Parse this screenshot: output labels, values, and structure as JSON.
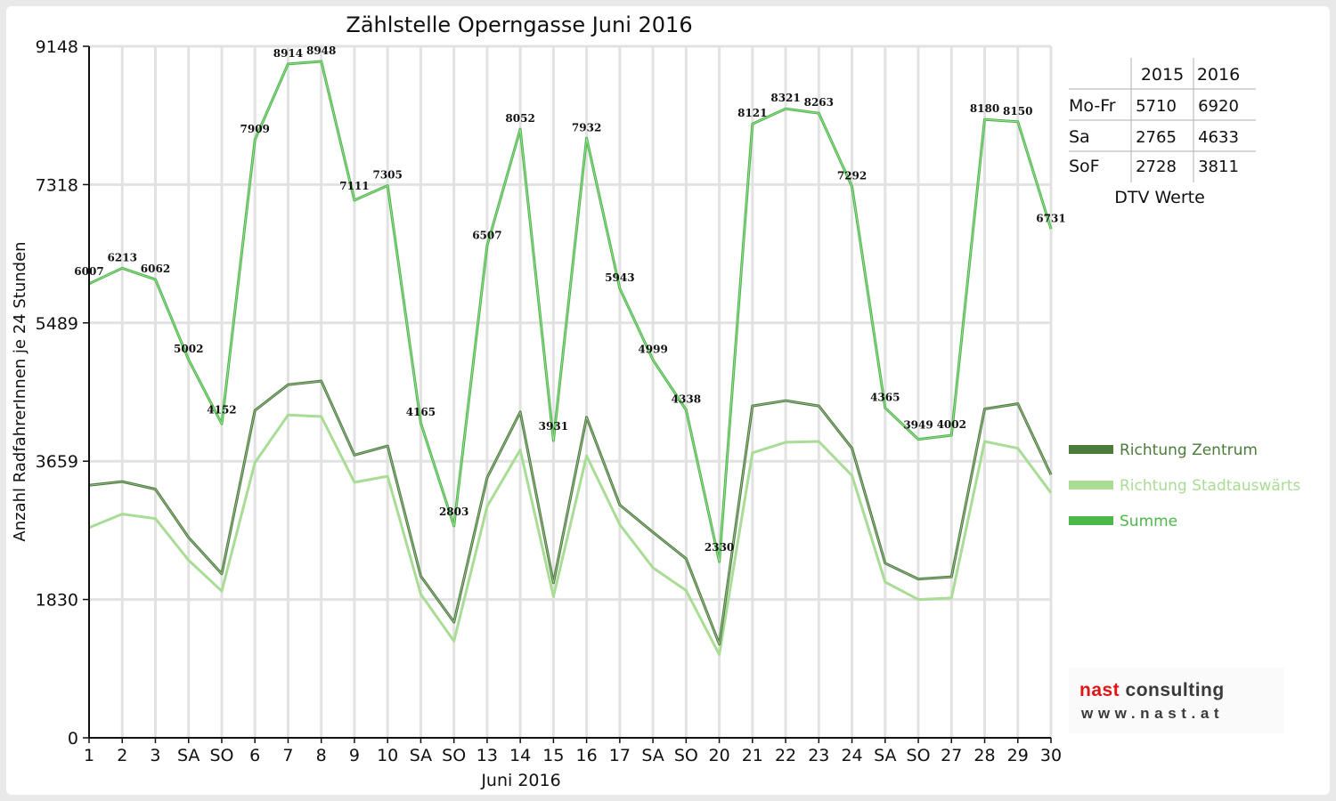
{
  "chart_data": {
    "type": "line",
    "title": "Zählstelle Operngasse Juni 2016",
    "xlabel": "Juni 2016",
    "ylabel": "Anzahl RadfahrerInnen je 24 Stunden",
    "ylim": [
      0,
      9148
    ],
    "yticks": [
      "0",
      "1830",
      "3659",
      "5489",
      "7318",
      "9148"
    ],
    "ytick_values": [
      0,
      1830,
      3659,
      5489,
      7318,
      9148
    ],
    "categories": [
      "1",
      "2",
      "3",
      "SA",
      "SO",
      "6",
      "7",
      "8",
      "9",
      "10",
      "SA",
      "SO",
      "13",
      "14",
      "15",
      "16",
      "17",
      "SA",
      "SO",
      "20",
      "21",
      "22",
      "23",
      "24",
      "SA",
      "SO",
      "27",
      "28",
      "29",
      "30"
    ],
    "weekend_labels": [
      "SA",
      "SO"
    ],
    "sunday_label_color": "#e00000",
    "grid": true,
    "legend_position": "right",
    "series": [
      {
        "name": "Richtung Zentrum",
        "color": "#4a7c3a",
        "values": [
          3340,
          3390,
          3290,
          2650,
          2170,
          4330,
          4670,
          4720,
          3740,
          3860,
          2140,
          1530,
          3440,
          4310,
          2050,
          4240,
          3080,
          2720,
          2370,
          1240,
          4390,
          4460,
          4390,
          3830,
          2310,
          2100,
          2130,
          4350,
          4420,
          3480
        ]
      },
      {
        "name": "Richtung Stadtauswärts",
        "color": "#a9dc95",
        "values": [
          2780,
          2960,
          2900,
          2350,
          1940,
          3640,
          4270,
          4250,
          3380,
          3460,
          1900,
          1280,
          3060,
          3810,
          1870,
          3730,
          2820,
          2250,
          1950,
          1100,
          3770,
          3910,
          3920,
          3470,
          2060,
          1830,
          1850,
          3920,
          3830,
          3240
        ]
      },
      {
        "name": "Summe",
        "color": "#4cb848",
        "values": [
          6007,
          6213,
          6062,
          5002,
          4152,
          7909,
          8914,
          8948,
          7111,
          7305,
          4165,
          2803,
          6507,
          8052,
          3931,
          7932,
          5943,
          4999,
          4338,
          2330,
          8121,
          8321,
          8263,
          7292,
          4365,
          3949,
          4002,
          8180,
          8150,
          6731
        ],
        "labels": [
          "6007",
          "6213",
          "6062",
          "5002",
          "4152",
          "7909",
          "8914",
          "8948",
          "7111",
          "7305",
          "4165",
          "2803",
          "6507",
          "8052",
          "3931",
          "7932",
          "5943",
          "4999",
          "4338",
          "2330",
          "8121",
          "8321",
          "8263",
          "7292",
          "4365",
          "3949",
          "4002",
          "8180",
          "8150",
          "6731"
        ]
      }
    ]
  },
  "dtv_table": {
    "caption": "DTV Werte",
    "header": [
      "",
      "2015",
      "2016"
    ],
    "rows": [
      [
        "Mo-Fr",
        "5710",
        "6920"
      ],
      [
        "Sa",
        "2765",
        "4633"
      ],
      [
        "SoF",
        "2728",
        "3811"
      ]
    ]
  },
  "logo": {
    "name_part1": "nast",
    "name_part2": " consulting",
    "url": "www.nast.at"
  }
}
